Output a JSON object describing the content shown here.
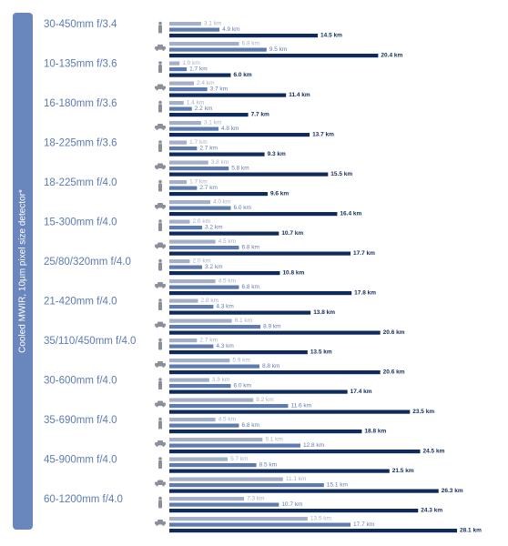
{
  "chart_data": {
    "type": "bar",
    "side_label": "Cooled MWIR, 10µm pixel size detector*",
    "categories": [
      "30-450mm f/3.4",
      "10-135mm f/3.6",
      "16-180mm f/3.6",
      "18-225mm f/3.6",
      "18-225mm f/4.0",
      "15-300mm f/4.0",
      "25/80/320mm f/4.0",
      "21-420mm f/4.0",
      "35/110/450mm f/4.0",
      "30-600mm f/4.0",
      "35-690mm f/4.0",
      "45-900mm f/4.0",
      "60-1200mm f/4.0"
    ],
    "series": [
      {
        "icon": "person",
        "color": "#a3b0c8",
        "values": [
          3.1,
          1.0,
          1.4,
          1.7,
          1.7,
          2.0,
          2.0,
          2.8,
          2.7,
          3.9,
          4.5,
          5.7,
          7.3
        ],
        "value_labels": [
          "3.1 km",
          "1.0 km",
          "1.4 km",
          "1.7 km",
          "1.7 km",
          "2.0 km",
          "2.0 km",
          "2.8 km",
          "2.7 km",
          "3.9 km",
          "4.5 km",
          "5.7 km",
          "7.3 km"
        ]
      },
      {
        "icon": "person",
        "color": "#5d7bb0",
        "values": [
          4.9,
          1.7,
          2.2,
          2.7,
          2.7,
          3.2,
          3.2,
          4.3,
          4.3,
          6.0,
          6.8,
          8.5,
          10.7
        ],
        "value_labels": [
          "4.9 km",
          "1.7 km",
          "2.2 km",
          "2.7 km",
          "2.7 km",
          "3.2 km",
          "3.2 km",
          "4.3 km",
          "4.3 km",
          "6.0 km",
          "6.8 km",
          "8.5 km",
          "10.7 km"
        ]
      },
      {
        "icon": "person",
        "color": "#0f2a5c",
        "values": [
          14.5,
          6.0,
          7.7,
          9.3,
          9.6,
          10.7,
          10.8,
          13.8,
          13.5,
          17.4,
          18.8,
          21.5,
          24.3
        ],
        "value_labels": [
          "14.5 km",
          "6.0 km",
          "7.7 km",
          "9.3 km",
          "9.6 km",
          "10.7 km",
          "10.8 km",
          "13.8 km",
          "13.5 km",
          "17.4 km",
          "18.8 km",
          "21.5 km",
          "24.3 km"
        ]
      },
      {
        "icon": "vehicle",
        "color": "#a3b0c8",
        "values": [
          6.8,
          2.4,
          3.1,
          3.8,
          4.0,
          4.5,
          4.5,
          6.1,
          5.9,
          8.2,
          9.1,
          11.1,
          13.5
        ],
        "value_labels": [
          "6.8 km",
          "2.4 km",
          "3.1 km",
          "3.8 km",
          "4.0 km",
          "4.5 km",
          "4.5 km",
          "6.1 km",
          "5.9 km",
          "8.2 km",
          "9.1 km",
          "11.1 km",
          "13.5 km"
        ]
      },
      {
        "icon": "vehicle",
        "color": "#5d7bb0",
        "values": [
          9.5,
          3.7,
          4.8,
          5.8,
          6.0,
          6.8,
          6.8,
          8.9,
          8.8,
          11.6,
          12.8,
          15.1,
          17.7
        ],
        "value_labels": [
          "9.5 km",
          "3.7 km",
          "4.8 km",
          "5.8 km",
          "6.0 km",
          "6.8 km",
          "6.8 km",
          "8.9 km",
          "8.8 km",
          "11.6 km",
          "12.8 km",
          "15.1 km",
          "17.7 km"
        ]
      },
      {
        "icon": "vehicle",
        "color": "#0f2a5c",
        "values": [
          20.4,
          11.4,
          13.7,
          15.5,
          16.4,
          17.7,
          17.8,
          20.6,
          20.6,
          23.5,
          24.5,
          26.3,
          28.1
        ],
        "value_labels": [
          "20.4 km",
          "11.4 km",
          "13.7 km",
          "15.5 km",
          "16.4 km",
          "17.7 km",
          "17.8 km",
          "20.6 km",
          "20.6 km",
          "23.5 km",
          "24.5 km",
          "26.3 km",
          "28.1 km"
        ]
      }
    ]
  }
}
